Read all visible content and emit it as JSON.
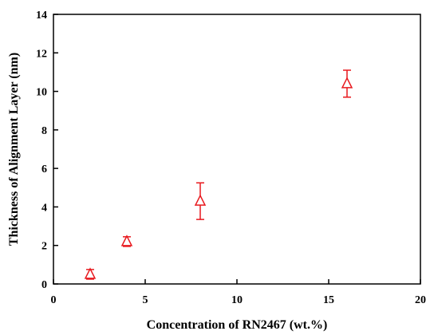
{
  "chart_data": {
    "type": "scatter",
    "xlabel": "Concentration of RN2467 (wt.%)",
    "ylabel": "Thickness of Alignment Layer (nm)",
    "x": [
      2,
      4,
      8,
      16
    ],
    "values": [
      0.5,
      2.2,
      4.3,
      10.4
    ],
    "errors": [
      0.25,
      0.25,
      0.95,
      0.7
    ],
    "color": "#e8191e",
    "marker": "triangle",
    "xlim": [
      0,
      20
    ],
    "xticks": [
      0,
      5,
      10,
      15,
      20
    ],
    "ylim": [
      0,
      14
    ],
    "yticks": [
      0,
      2,
      4,
      6,
      8,
      10,
      12,
      14
    ]
  }
}
